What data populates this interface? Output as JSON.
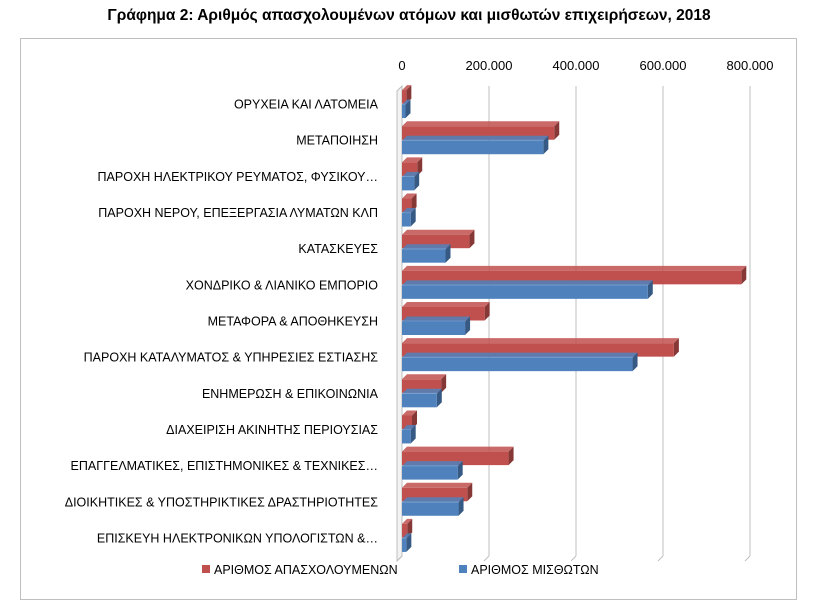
{
  "chart_data": {
    "type": "bar",
    "orientation": "horizontal",
    "title": "Γράφημα 2: Αριθμός απασχολουμένων ατόμων και μισθωτών επιχειρήσεων, 2018",
    "xlim": [
      0,
      800000
    ],
    "x_ticks": [
      "0",
      "200.000",
      "400.000",
      "600.000",
      "800.000"
    ],
    "x_tick_values": [
      0,
      200000,
      400000,
      600000,
      800000
    ],
    "grid": true,
    "legend_position": "bottom",
    "categories": [
      "ΟΡΥΧΕΙΑ ΚΑΙ ΛΑΤΟΜΕΙΑ",
      "ΜΕΤΑΠΟΙΗΣΗ",
      "ΠΑΡΟΧΗ ΗΛΕΚΤΡΙΚΟΥ ΡΕΥΜΑΤΟΣ, ΦΥΣΙΚΟΥ…",
      "ΠΑΡΟΧΗ ΝΕΡΟΥ,  ΕΠΕΞΕΡΓΑΣΙΑ ΛΥΜΑΤΩΝ ΚΛΠ",
      "ΚΑΤΑΣΚΕΥΕΣ",
      "ΧΟΝΔΡΙΚΟ & ΛΙΑΝΙΚΟ ΕΜΠΟΡΙΟ",
      "ΜΕΤΑΦΟΡΑ & ΑΠΟΘΗΚΕΥΣΗ",
      "ΠΑΡΟΧΗ ΚΑΤΑΛΥΜΑΤΟΣ & ΥΠΗΡΕΣΙΕΣ ΕΣΤΙΑΣΗΣ",
      "ΕΝΗΜΕΡΩΣΗ & ΕΠΙΚΟΙΝΩΝΙΑ",
      "ΔΙΑΧΕΙΡΙΣΗ ΑΚΙΝΗΤΗΣ ΠΕΡΙΟΥΣΙΑΣ",
      "ΕΠΑΓΓΕΛΜΑΤΙΚΕΣ, ΕΠΙΣΤΗΜΟΝΙΚΕΣ & ΤΕΧΝΙΚΕΣ…",
      "ΔΙΟΙΚΗΤΙΚΕΣ & ΥΠΟΣΤΗΡΙΚΤΙΚΕΣ ΔΡΑΣΤΗΡΙΟΤΗΤΕΣ",
      "ΕΠΙΣΚΕΥΗ ΗΛΕΚΤΡΟΝΙΚΩΝ ΥΠΟΛΟΓΙΣΤΩΝ &…"
    ],
    "series": [
      {
        "name": "ΑΡΙΘΜΟΣ ΑΠΑΣΧΟΛΟΥΜΕΝΩΝ",
        "color": "#c0504d",
        "values": [
          10000,
          350000,
          35000,
          22000,
          155000,
          780000,
          190000,
          625000,
          90000,
          23000,
          245000,
          150000,
          12000
        ]
      },
      {
        "name": "ΑΡΙΘΜΟΣ ΜΙΣΘΩΤΩΝ",
        "color": "#4f81bd",
        "values": [
          8000,
          325000,
          28000,
          20000,
          100000,
          565000,
          145000,
          530000,
          80000,
          20000,
          128000,
          130000,
          10000
        ]
      }
    ]
  }
}
